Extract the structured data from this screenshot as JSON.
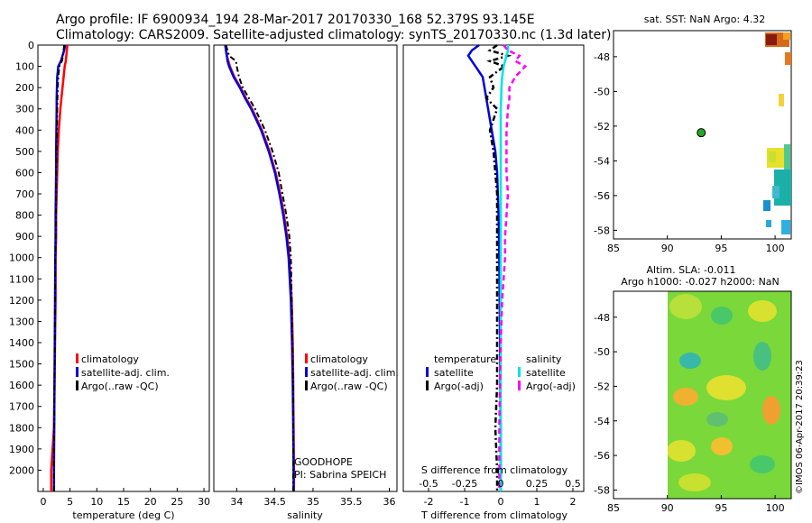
{
  "header": {
    "title_line1": "Argo profile: IF 6900934_194 28-Mar-2017 20170330_168 52.379S 93.145E",
    "title_line2": "Climatology: CARS2009. Satellite-adjusted climatology: synTS_20170330.nc (1.3d later)"
  },
  "colors": {
    "climatology": "#ff0000",
    "satellite": "#0000dd",
    "argo": "#000000",
    "satellite_salinity": "#00e5e5",
    "argo_adj_salinity": "#ff00ff",
    "marker": "#22aa22"
  },
  "legend": {
    "climatology": "climatology",
    "satellite": "satellite-adj. clim.",
    "argo": "Argo(..raw -QC)"
  },
  "diff_legend": {
    "temp_header": "temperature",
    "sal_header": "salinity",
    "temp_satellite": "satellite",
    "temp_argo": "Argo(-adj)",
    "sal_satellite": "satellite",
    "sal_argo": "Argo(-adj)"
  },
  "annotations": {
    "project": "GOODHOPE",
    "pi": "PI: Sabrina SPEICH"
  },
  "map_sst": {
    "title": "sat. SST: NaN Argo: 4.32",
    "xticks": [
      "85",
      "90",
      "95",
      "100"
    ],
    "yticks": [
      "-48",
      "-50",
      "-52",
      "-54",
      "-56",
      "-58"
    ],
    "xlim": [
      85,
      101.5
    ],
    "ylim": [
      -58.5,
      -46.5
    ],
    "argo_position": {
      "lon": 93.145,
      "lat": -52.379
    }
  },
  "map_sla": {
    "title_line1": "Altim. SLA: -0.011",
    "title_line2": "Argo h1000: -0.027 h2000: NaN",
    "xticks": [
      "85",
      "90",
      "95",
      "100"
    ],
    "yticks": [
      "-48",
      "-50",
      "-52",
      "-54",
      "-56",
      "-58"
    ],
    "xlim": [
      85,
      101.5
    ],
    "ylim": [
      -58.5,
      -46.5
    ],
    "data_extent_lon": [
      90,
      101.5
    ]
  },
  "footer": {
    "credit": "©IMOS 06-Apr-2017 20:39:23"
  },
  "chart_data": [
    {
      "type": "line",
      "name": "temperature-profile",
      "xlabel": "temperature (deg C)",
      "ylabel": "",
      "xlim": [
        -1,
        31
      ],
      "ylim": [
        2100,
        0
      ],
      "xticks": [
        "0",
        "5",
        "10",
        "15",
        "20",
        "25",
        "30"
      ],
      "yticks": [
        "0",
        "100",
        "200",
        "300",
        "400",
        "500",
        "600",
        "700",
        "800",
        "900",
        "1000",
        "1100",
        "1200",
        "1300",
        "1400",
        "1500",
        "1600",
        "1700",
        "1800",
        "1900",
        "2000"
      ],
      "depth": [
        0,
        25,
        50,
        75,
        100,
        150,
        200,
        250,
        300,
        400,
        500,
        600,
        700,
        800,
        900,
        1000,
        1200,
        1400,
        1600,
        1800,
        2000,
        2100
      ],
      "series": [
        {
          "name": "climatology",
          "values": [
            4.5,
            4.4,
            4.3,
            4.2,
            4.0,
            3.8,
            3.6,
            3.4,
            3.2,
            2.9,
            2.7,
            2.6,
            2.5,
            2.4,
            2.4,
            2.3,
            2.3,
            2.2,
            2.1,
            2.0,
            1.5,
            1.5
          ]
        },
        {
          "name": "satellite-adj. clim.",
          "values": [
            4.1,
            3.9,
            3.6,
            3.3,
            2.8,
            2.6,
            2.55,
            2.5,
            2.5,
            2.45,
            2.4,
            2.4,
            2.35,
            2.3,
            2.3,
            2.25,
            2.2,
            2.15,
            2.1,
            2.05,
            2.0,
            2.0
          ]
        },
        {
          "name": "Argo(..raw -QC)",
          "values": [
            3.9,
            3.8,
            3.7,
            3.5,
            3.0,
            2.8,
            2.7,
            2.65,
            2.6,
            2.55,
            2.5,
            2.45,
            2.4,
            2.35,
            2.3,
            2.25,
            2.2,
            2.15,
            2.1,
            2.05,
            2.0,
            2.0
          ]
        }
      ]
    },
    {
      "type": "line",
      "name": "salinity-profile",
      "xlabel": "salinity",
      "xlim": [
        33.7,
        36.1
      ],
      "ylim": [
        2100,
        0
      ],
      "xticks": [
        "34",
        "34.5",
        "35",
        "35.5",
        "36"
      ],
      "depth": [
        0,
        25,
        50,
        75,
        100,
        150,
        200,
        250,
        300,
        400,
        500,
        600,
        700,
        800,
        900,
        1000,
        1200,
        1400,
        1600,
        1800,
        2000,
        2100
      ],
      "series": [
        {
          "name": "climatology",
          "values": [
            33.85,
            33.86,
            33.87,
            33.89,
            33.91,
            33.97,
            34.05,
            34.12,
            34.2,
            34.33,
            34.43,
            34.51,
            34.57,
            34.62,
            34.66,
            34.69,
            34.72,
            34.735,
            34.74,
            34.745,
            34.75,
            34.75
          ]
        },
        {
          "name": "satellite-adj. clim.",
          "values": [
            33.85,
            33.86,
            33.87,
            33.88,
            33.9,
            33.96,
            34.04,
            34.11,
            34.19,
            34.32,
            34.42,
            34.5,
            34.56,
            34.61,
            34.65,
            34.68,
            34.71,
            34.725,
            34.735,
            34.74,
            34.745,
            34.745
          ]
        },
        {
          "name": "Argo(..raw -QC)",
          "values": [
            33.86,
            33.88,
            33.9,
            33.99,
            34.0,
            34.03,
            34.08,
            34.16,
            34.24,
            34.37,
            34.47,
            34.55,
            34.6,
            34.65,
            34.69,
            34.71,
            34.72,
            34.73,
            34.74,
            34.74,
            34.74,
            34.74
          ]
        }
      ]
    },
    {
      "type": "line",
      "name": "difference-profile",
      "xlabel": "T difference from climatology",
      "xlabel_top": "S difference from climatology",
      "xlim": [
        -2.7,
        2.3
      ],
      "ylim": [
        2100,
        0
      ],
      "xticks": [
        "-2",
        "-1",
        "0",
        "1",
        "2"
      ],
      "xticks_top": [
        "-0.5",
        "-0.25",
        "0",
        "0.25",
        "0.5"
      ],
      "xticks_top_values": [
        -0.5,
        -0.25,
        0,
        0.25,
        0.5
      ],
      "depth": [
        0,
        25,
        50,
        75,
        100,
        150,
        200,
        250,
        300,
        400,
        500,
        600,
        700,
        800,
        900,
        1000,
        1200,
        1400,
        1600,
        1800,
        2000,
        2100
      ],
      "series": [
        {
          "name": "temperature satellite",
          "values": [
            -0.6,
            -0.8,
            -0.9,
            -0.8,
            -0.7,
            -0.5,
            -0.45,
            -0.4,
            -0.35,
            -0.25,
            -0.15,
            -0.1,
            -0.08,
            -0.06,
            -0.05,
            -0.04,
            -0.03,
            -0.02,
            -0.01,
            0.0,
            0.0,
            0.0
          ]
        },
        {
          "name": "temperature Argo(-adj)",
          "values": [
            -0.1,
            -0.3,
            0.2,
            -0.3,
            0.1,
            -0.3,
            -0.2,
            -0.4,
            -0.1,
            -0.3,
            -0.2,
            -0.15,
            -0.1,
            -0.1,
            -0.1,
            -0.1,
            -0.1,
            -0.1,
            -0.1,
            -0.15,
            -0.1,
            -0.1
          ]
        },
        {
          "name": "salinity satellite",
          "values": [
            0.05,
            0.05,
            0.04,
            0.03,
            0.02,
            0.01,
            0.005,
            0.003,
            0.0,
            0.0,
            0.0,
            0.0,
            0.0,
            0.0,
            0.0,
            0.0,
            0.0,
            0.0,
            0.0,
            0.0,
            0.0,
            0.0
          ]
        },
        {
          "name": "salinity Argo(-adj)",
          "values": [
            0.02,
            0.05,
            0.13,
            0.1,
            0.17,
            0.1,
            0.06,
            0.06,
            0.05,
            0.04,
            0.04,
            0.04,
            0.05,
            0.04,
            0.03,
            0.03,
            0.01,
            0.0,
            -0.005,
            -0.01,
            -0.01,
            -0.01
          ]
        }
      ]
    }
  ]
}
